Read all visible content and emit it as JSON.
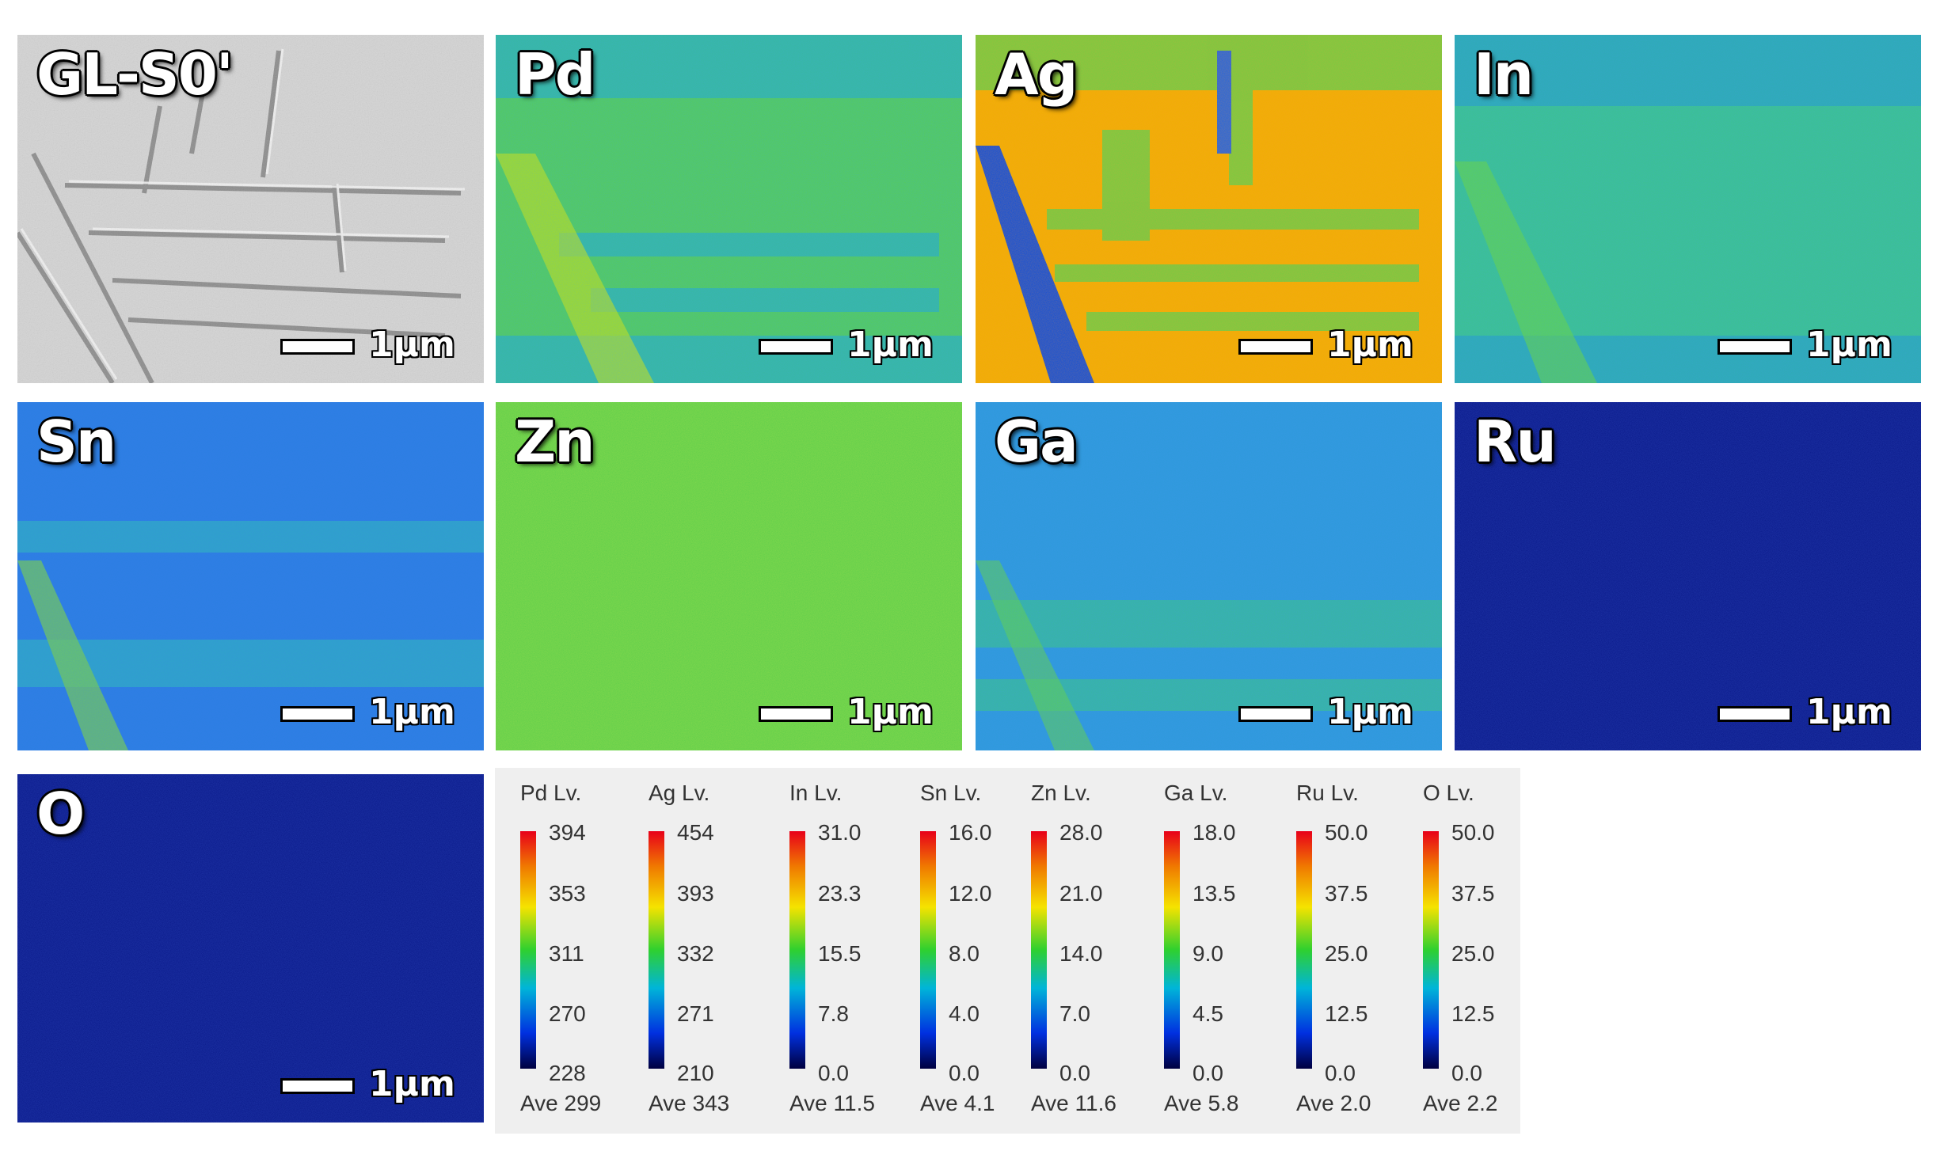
{
  "panels": [
    {
      "label": "GL-S0'",
      "kind": "sem",
      "scale": "1μm"
    },
    {
      "label": "Pd",
      "kind": "pd",
      "scale": "1μm"
    },
    {
      "label": "Ag",
      "kind": "ag",
      "scale": "1μm"
    },
    {
      "label": "In",
      "kind": "in",
      "scale": "1μm"
    },
    {
      "label": "Sn",
      "kind": "sn",
      "scale": "1μm"
    },
    {
      "label": "Zn",
      "kind": "zn",
      "scale": "1μm"
    },
    {
      "label": "Ga",
      "kind": "ga",
      "scale": "1μm"
    },
    {
      "label": "Ru",
      "kind": "ru",
      "scale": "1μm"
    },
    {
      "label": "O",
      "kind": "o",
      "scale": "1μm"
    }
  ],
  "colors": {
    "legend_bg": "#efefef",
    "cbar_top": "#e8001a",
    "cbar_mid": "#2fd02f",
    "cbar_bottom": "#000040",
    "low_signal_blue": "#0a1a8a"
  },
  "legends": [
    {
      "title": "Pd  Lv.",
      "ticks": [
        "394",
        "353",
        "311",
        "270",
        "228"
      ],
      "ave": "Ave 299"
    },
    {
      "title": "Ag  Lv.",
      "ticks": [
        "454",
        "393",
        "332",
        "271",
        "210"
      ],
      "ave": "Ave 343"
    },
    {
      "title": "In  Lv.",
      "ticks": [
        "31.0",
        "23.3",
        "15.5",
        "7.8",
        "0.0"
      ],
      "ave": "Ave 11.5"
    },
    {
      "title": "Sn  Lv.",
      "ticks": [
        "16.0",
        "12.0",
        "8.0",
        "4.0",
        "0.0"
      ],
      "ave": "Ave 4.1"
    },
    {
      "title": "Zn  Lv.",
      "ticks": [
        "28.0",
        "21.0",
        "14.0",
        "7.0",
        "0.0"
      ],
      "ave": "Ave 11.6"
    },
    {
      "title": "Ga  Lv.",
      "ticks": [
        "18.0",
        "13.5",
        "9.0",
        "4.5",
        "0.0"
      ],
      "ave": "Ave 5.8"
    },
    {
      "title": "Ru  Lv.",
      "ticks": [
        "50.0",
        "37.5",
        "25.0",
        "12.5",
        "0.0"
      ],
      "ave": "Ave 2.0"
    },
    {
      "title": "O  Lv.",
      "ticks": [
        "50.0",
        "37.5",
        "25.0",
        "12.5",
        "0.0"
      ],
      "ave": "Ave 2.2"
    }
  ]
}
